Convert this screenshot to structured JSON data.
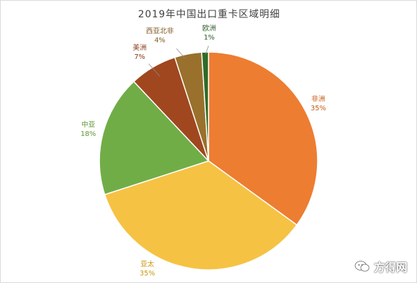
{
  "watermark": {
    "text": "方得网",
    "icon": "wechat-icon"
  },
  "chart_data": {
    "type": "pie",
    "title": "2019年中国出口重卡区域明细",
    "slices": [
      {
        "name": "非洲",
        "value": 35,
        "label": "35%",
        "color": "#ED7D31",
        "text_color": "#C65B12"
      },
      {
        "name": "亚太",
        "value": 35,
        "label": "35%",
        "color": "#F6C244",
        "text_color": "#C9960C"
      },
      {
        "name": "中亚",
        "value": 18,
        "label": "18%",
        "color": "#70AD47",
        "text_color": "#5E9632"
      },
      {
        "name": "美洲",
        "value": 7,
        "label": "7%",
        "color": "#A0471F",
        "text_color": "#8A3A16"
      },
      {
        "name": "西亚北非",
        "value": 4,
        "label": "4%",
        "color": "#99712C",
        "text_color": "#7D5B20"
      },
      {
        "name": "欧洲",
        "value": 1,
        "label": "1%",
        "color": "#2F6B2A",
        "text_color": "#2F5E29"
      }
    ],
    "start_angle_deg": 0,
    "direction": "clockwise",
    "legend": "none"
  }
}
